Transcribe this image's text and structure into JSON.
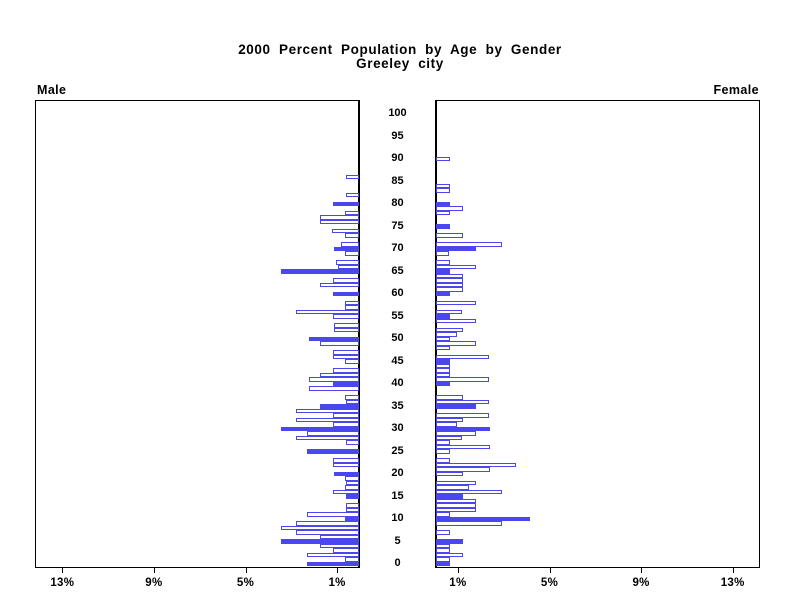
{
  "title": {
    "line1": "2000 Percent Population by Age by Gender",
    "line2": "Greeley city"
  },
  "panels": {
    "left_label": "Male",
    "right_label": "Female"
  },
  "colors": {
    "bar_blue": "#4a48ec",
    "axis_black": "#000000",
    "background": "#ffffff"
  },
  "axis": {
    "age_tick_labels": [
      0,
      5,
      10,
      15,
      20,
      25,
      30,
      35,
      40,
      45,
      50,
      55,
      60,
      65,
      70,
      75,
      80,
      85,
      90,
      95,
      100
    ],
    "left_pct_ticks": [
      {
        "label": "13%",
        "value": 13
      },
      {
        "label": "9%",
        "value": 9
      },
      {
        "label": "5%",
        "value": 5
      },
      {
        "label": "1%",
        "value": 1
      }
    ],
    "right_pct_ticks": [
      {
        "label": "1%",
        "value": 1
      },
      {
        "label": "5%",
        "value": 5
      },
      {
        "label": "9%",
        "value": 9
      },
      {
        "label": "13%",
        "value": 13
      }
    ]
  },
  "chart_data": {
    "type": "bar",
    "subtype": "population-pyramid",
    "title": "2000 Percent Population by Age by Gender — Greeley city",
    "x_unit": "percent of population",
    "age_min": 0,
    "age_max": 100,
    "xlim_percent": [
      0,
      14.2
    ],
    "note": "points are [age, percent, solid_fill(1=blue solid, 0=white outline)]; ages omitted have no visible bar",
    "series": [
      {
        "name": "Male",
        "side": "left",
        "points": [
          [
            0,
            2.25,
            1
          ],
          [
            1,
            0.6,
            0
          ],
          [
            2,
            2.25,
            0
          ],
          [
            3,
            1.15,
            0
          ],
          [
            4,
            1.7,
            0
          ],
          [
            5,
            3.4,
            1
          ],
          [
            6,
            1.7,
            0
          ],
          [
            7,
            2.75,
            0
          ],
          [
            8,
            3.4,
            0
          ],
          [
            9,
            2.75,
            0
          ],
          [
            10,
            0.6,
            1
          ],
          [
            11,
            2.25,
            0
          ],
          [
            12,
            0.55,
            0
          ],
          [
            13,
            0.55,
            0
          ],
          [
            15,
            0.55,
            1
          ],
          [
            16,
            1.15,
            0
          ],
          [
            17,
            0.6,
            0
          ],
          [
            18,
            0.55,
            0
          ],
          [
            19,
            0.6,
            0
          ],
          [
            20,
            1.1,
            1
          ],
          [
            22,
            1.15,
            0
          ],
          [
            23,
            1.15,
            0
          ],
          [
            25,
            2.25,
            1
          ],
          [
            27,
            0.55,
            0
          ],
          [
            28,
            2.75,
            0
          ],
          [
            29,
            2.25,
            0
          ],
          [
            30,
            3.4,
            1
          ],
          [
            31,
            1.15,
            0
          ],
          [
            32,
            2.75,
            0
          ],
          [
            33,
            1.15,
            0
          ],
          [
            34,
            2.75,
            0
          ],
          [
            35,
            1.7,
            1
          ],
          [
            36,
            0.55,
            0
          ],
          [
            37,
            0.6,
            0
          ],
          [
            39,
            2.2,
            0
          ],
          [
            40,
            1.15,
            1
          ],
          [
            41,
            2.2,
            0
          ],
          [
            42,
            1.7,
            0
          ],
          [
            43,
            1.15,
            0
          ],
          [
            45,
            0.6,
            0
          ],
          [
            46,
            1.15,
            0
          ],
          [
            47,
            1.15,
            0
          ],
          [
            49,
            1.7,
            0
          ],
          [
            50,
            2.2,
            1
          ],
          [
            52,
            1.1,
            0
          ],
          [
            53,
            1.1,
            0
          ],
          [
            55,
            1.15,
            0
          ],
          [
            56,
            2.75,
            0
          ],
          [
            57,
            0.6,
            0
          ],
          [
            58,
            0.6,
            0
          ],
          [
            60,
            1.15,
            1
          ],
          [
            62,
            1.7,
            0
          ],
          [
            63,
            1.15,
            0
          ],
          [
            65,
            3.4,
            1
          ],
          [
            66,
            0.9,
            0
          ],
          [
            67,
            1.0,
            0
          ],
          [
            69,
            0.6,
            0
          ],
          [
            70,
            1.1,
            1
          ],
          [
            71,
            0.8,
            0
          ],
          [
            73,
            0.6,
            0
          ],
          [
            74,
            1.2,
            0
          ],
          [
            76,
            1.7,
            0
          ],
          [
            77,
            1.7,
            0
          ],
          [
            78,
            0.6,
            0
          ],
          [
            80,
            1.15,
            1
          ],
          [
            82,
            0.55,
            0
          ],
          [
            86,
            0.55,
            0
          ]
        ]
      },
      {
        "name": "Female",
        "side": "right",
        "points": [
          [
            0,
            0.6,
            1
          ],
          [
            1,
            0.6,
            0
          ],
          [
            2,
            1.2,
            0
          ],
          [
            3,
            0.6,
            0
          ],
          [
            4,
            0.6,
            0
          ],
          [
            5,
            1.2,
            1
          ],
          [
            7,
            0.6,
            0
          ],
          [
            9,
            2.9,
            0
          ],
          [
            10,
            4.1,
            1
          ],
          [
            11,
            0.6,
            0
          ],
          [
            12,
            1.75,
            0
          ],
          [
            13,
            1.75,
            0
          ],
          [
            14,
            1.75,
            0
          ],
          [
            15,
            1.2,
            1
          ],
          [
            16,
            2.9,
            0
          ],
          [
            17,
            1.45,
            0
          ],
          [
            18,
            1.75,
            0
          ],
          [
            20,
            1.2,
            0
          ],
          [
            21,
            2.35,
            0
          ],
          [
            22,
            3.5,
            0
          ],
          [
            23,
            0.6,
            0
          ],
          [
            25,
            0.6,
            0
          ],
          [
            26,
            2.35,
            0
          ],
          [
            27,
            0.6,
            0
          ],
          [
            28,
            1.15,
            0
          ],
          [
            29,
            1.75,
            0
          ],
          [
            30,
            2.35,
            1
          ],
          [
            31,
            0.9,
            0
          ],
          [
            32,
            1.2,
            0
          ],
          [
            33,
            2.3,
            0
          ],
          [
            35,
            1.75,
            1
          ],
          [
            36,
            2.3,
            0
          ],
          [
            37,
            1.2,
            0
          ],
          [
            40,
            0.6,
            1
          ],
          [
            41,
            2.3,
            0
          ],
          [
            42,
            0.6,
            0
          ],
          [
            43,
            0.6,
            0
          ],
          [
            44,
            0.6,
            0
          ],
          [
            45,
            0.6,
            1
          ],
          [
            46,
            2.3,
            0
          ],
          [
            48,
            0.6,
            0
          ],
          [
            49,
            1.75,
            0
          ],
          [
            50,
            0.6,
            0
          ],
          [
            51,
            0.9,
            0
          ],
          [
            52,
            1.2,
            0
          ],
          [
            54,
            1.75,
            0
          ],
          [
            55,
            0.6,
            1
          ],
          [
            56,
            1.15,
            0
          ],
          [
            58,
            1.75,
            0
          ],
          [
            60,
            0.6,
            1
          ],
          [
            61,
            1.2,
            0
          ],
          [
            62,
            1.2,
            0
          ],
          [
            63,
            1.2,
            0
          ],
          [
            64,
            1.2,
            0
          ],
          [
            65,
            0.6,
            1
          ],
          [
            66,
            1.75,
            0
          ],
          [
            67,
            0.6,
            0
          ],
          [
            69,
            0.55,
            0
          ],
          [
            70,
            1.75,
            1
          ],
          [
            71,
            2.9,
            0
          ],
          [
            73,
            1.2,
            0
          ],
          [
            75,
            0.6,
            1
          ],
          [
            78,
            0.6,
            0
          ],
          [
            79,
            1.2,
            0
          ],
          [
            80,
            0.6,
            1
          ],
          [
            83,
            0.6,
            0
          ],
          [
            84,
            0.6,
            0
          ],
          [
            90,
            0.6,
            0
          ]
        ]
      }
    ]
  }
}
